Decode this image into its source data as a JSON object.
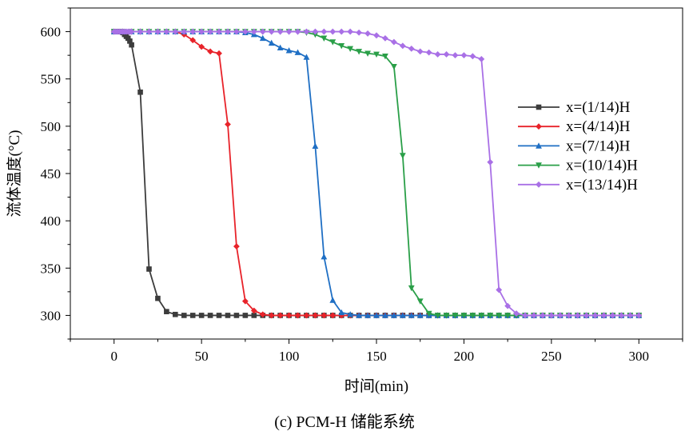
{
  "chart_data": {
    "type": "line",
    "title": "",
    "xlabel": "时间(min)",
    "ylabel": "流体温度(°C)",
    "xlim": [
      -25,
      325
    ],
    "ylim": [
      275,
      625
    ],
    "x_ticks": [
      0,
      50,
      100,
      150,
      200,
      250,
      300
    ],
    "y_ticks": [
      300,
      350,
      400,
      450,
      500,
      550,
      600
    ],
    "grid": false,
    "legend_position": "right",
    "caption": "(c) PCM-H 储能系统",
    "series": [
      {
        "name": "x=(1/14)H",
        "color": "#3c3c3c",
        "marker": "square",
        "x": [
          0,
          1,
          2,
          3,
          4,
          5,
          6,
          7,
          8,
          9,
          10,
          15,
          20,
          25,
          30,
          35,
          40,
          45,
          50,
          55,
          60,
          65,
          70,
          75,
          80,
          85,
          90,
          95,
          100,
          105,
          110,
          115,
          120,
          125,
          130,
          135,
          140,
          145,
          150,
          155,
          160,
          165,
          170,
          175,
          180,
          185,
          190,
          195,
          200,
          205,
          210,
          215,
          220,
          225,
          230,
          235,
          240,
          245,
          250,
          255,
          260,
          265,
          270,
          275,
          280,
          285,
          290,
          295,
          300
        ],
        "y": [
          600,
          600,
          600,
          600,
          600,
          599,
          597,
          595,
          593,
          590,
          586,
          536,
          349,
          318,
          304,
          301,
          300,
          300,
          300,
          300,
          300,
          300,
          300,
          300,
          300,
          300,
          300,
          300,
          300,
          300,
          300,
          300,
          300,
          300,
          300,
          300,
          300,
          300,
          300,
          300,
          300,
          300,
          300,
          300,
          300,
          300,
          300,
          300,
          300,
          300,
          300,
          300,
          300,
          300,
          300,
          300,
          300,
          300,
          300,
          300,
          300,
          300,
          300,
          300,
          300,
          300,
          300,
          300,
          300
        ]
      },
      {
        "name": "x=(4/14)H",
        "color": "#e8232a",
        "marker": "diamond",
        "x": [
          0,
          5,
          10,
          15,
          20,
          25,
          30,
          35,
          40,
          45,
          50,
          55,
          60,
          65,
          70,
          75,
          80,
          85,
          90,
          95,
          100,
          105,
          110,
          115,
          120,
          125,
          130,
          135,
          140,
          145,
          150,
          155,
          160,
          165,
          170,
          175,
          180,
          185,
          190,
          195,
          200,
          205,
          210,
          215,
          220,
          225,
          230,
          235,
          240,
          245,
          250,
          255,
          260,
          265,
          270,
          275,
          280,
          285,
          290,
          295,
          300
        ],
        "y": [
          600,
          600,
          600,
          600,
          600,
          600,
          600,
          600,
          597,
          591,
          584,
          579,
          577,
          502,
          373,
          315,
          305,
          301,
          300,
          300,
          300,
          300,
          300,
          300,
          300,
          300,
          300,
          300,
          300,
          300,
          300,
          300,
          300,
          300,
          300,
          300,
          300,
          300,
          300,
          300,
          300,
          300,
          300,
          300,
          300,
          300,
          300,
          300,
          300,
          300,
          300,
          300,
          300,
          300,
          300,
          300,
          300,
          300,
          300,
          300,
          300
        ]
      },
      {
        "name": "x=(7/14)H",
        "color": "#1f6fc4",
        "marker": "triangle-up",
        "x": [
          0,
          5,
          10,
          15,
          20,
          25,
          30,
          35,
          40,
          45,
          50,
          55,
          60,
          65,
          70,
          75,
          80,
          85,
          90,
          95,
          100,
          105,
          110,
          115,
          120,
          125,
          130,
          135,
          140,
          145,
          150,
          155,
          160,
          165,
          170,
          175,
          180,
          185,
          190,
          195,
          200,
          205,
          210,
          215,
          220,
          225,
          230,
          235,
          240,
          245,
          250,
          255,
          260,
          265,
          270,
          275,
          280,
          285,
          290,
          295,
          300
        ],
        "y": [
          600,
          600,
          600,
          600,
          600,
          600,
          600,
          600,
          600,
          600,
          600,
          600,
          600,
          600,
          600,
          599,
          597,
          593,
          588,
          583,
          580,
          578,
          573,
          479,
          362,
          316,
          303,
          301,
          300,
          300,
          300,
          300,
          300,
          300,
          300,
          300,
          300,
          300,
          300,
          300,
          300,
          300,
          300,
          300,
          300,
          300,
          300,
          300,
          300,
          300,
          300,
          300,
          300,
          300,
          300,
          300,
          300,
          300,
          300,
          300,
          300
        ]
      },
      {
        "name": "x=(10/14)H",
        "color": "#2a9f48",
        "marker": "triangle-down",
        "x": [
          0,
          5,
          10,
          15,
          20,
          25,
          30,
          35,
          40,
          45,
          50,
          55,
          60,
          65,
          70,
          75,
          80,
          85,
          90,
          95,
          100,
          105,
          110,
          115,
          120,
          125,
          130,
          135,
          140,
          145,
          150,
          155,
          160,
          165,
          170,
          175,
          180,
          185,
          190,
          195,
          200,
          205,
          210,
          215,
          220,
          225,
          230,
          235,
          240,
          245,
          250,
          255,
          260,
          265,
          270,
          275,
          280,
          285,
          290,
          295,
          300
        ],
        "y": [
          600,
          600,
          600,
          600,
          600,
          600,
          600,
          600,
          600,
          600,
          600,
          600,
          600,
          600,
          600,
          600,
          600,
          600,
          600,
          600,
          600,
          600,
          599,
          597,
          593,
          589,
          585,
          582,
          579,
          577,
          576,
          574,
          563,
          469,
          329,
          315,
          302,
          300,
          300,
          300,
          300,
          300,
          300,
          300,
          300,
          300,
          300,
          300,
          300,
          300,
          300,
          300,
          300,
          300,
          300,
          300,
          300,
          300,
          300,
          300,
          300
        ]
      },
      {
        "name": "x=(13/14)H",
        "color": "#a970e6",
        "marker": "diamond",
        "x": [
          0,
          1,
          2,
          3,
          4,
          5,
          6,
          7,
          8,
          9,
          10,
          15,
          20,
          25,
          30,
          35,
          40,
          45,
          50,
          55,
          60,
          65,
          70,
          75,
          80,
          85,
          90,
          95,
          100,
          105,
          110,
          115,
          120,
          125,
          130,
          135,
          140,
          145,
          150,
          155,
          160,
          165,
          170,
          175,
          180,
          185,
          190,
          195,
          200,
          205,
          210,
          215,
          220,
          225,
          230,
          235,
          240,
          245,
          250,
          255,
          260,
          265,
          270,
          275,
          280,
          285,
          290,
          295,
          300
        ],
        "y": [
          600,
          600,
          600,
          600,
          600,
          600,
          600,
          600,
          600,
          600,
          600,
          600,
          600,
          600,
          600,
          600,
          600,
          600,
          600,
          600,
          600,
          600,
          600,
          600,
          600,
          600,
          600,
          600,
          600,
          600,
          600,
          600,
          600,
          600,
          600,
          600,
          599,
          598,
          596,
          593,
          589,
          585,
          582,
          579,
          578,
          576,
          576,
          575,
          575,
          574,
          571,
          462,
          327,
          310,
          302,
          300,
          300,
          300,
          300,
          300,
          300,
          300,
          300,
          300,
          300,
          300,
          300,
          300,
          300
        ]
      }
    ]
  }
}
